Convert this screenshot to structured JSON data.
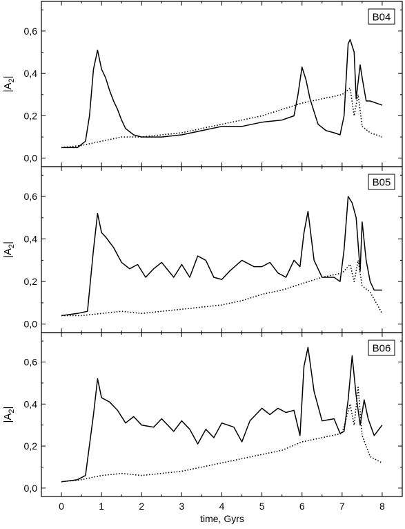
{
  "figure": {
    "xlabel": "time, Gyrs",
    "x_tick_labels": [
      "0",
      "1",
      "2",
      "3",
      "4",
      "5",
      "6",
      "7",
      "8"
    ],
    "y_tick_labels": [
      "0,0",
      "0,2",
      "0,4",
      "0,6"
    ],
    "ylabel_main": "|A",
    "ylabel_sub": "2",
    "ylabel_end": "|"
  },
  "chart_data": [
    {
      "type": "line",
      "label": "B04",
      "xlim": [
        -0.5,
        8.5
      ],
      "ylim": [
        -0.04,
        0.74
      ],
      "grid": false,
      "series": [
        {
          "style": "solid",
          "x": [
            0,
            0.2,
            0.4,
            0.6,
            0.7,
            0.8,
            0.9,
            1.0,
            1.1,
            1.2,
            1.3,
            1.4,
            1.5,
            1.6,
            1.8,
            2.0,
            2.5,
            3.0,
            3.5,
            4.0,
            4.5,
            5.0,
            5.5,
            5.8,
            5.9,
            6.0,
            6.1,
            6.2,
            6.4,
            6.6,
            6.8,
            6.95,
            7.05,
            7.15,
            7.2,
            7.3,
            7.35,
            7.45,
            7.5,
            7.6,
            7.7,
            8.0
          ],
          "y": [
            0.05,
            0.05,
            0.05,
            0.08,
            0.2,
            0.42,
            0.51,
            0.42,
            0.38,
            0.32,
            0.27,
            0.23,
            0.18,
            0.14,
            0.11,
            0.1,
            0.1,
            0.11,
            0.13,
            0.15,
            0.15,
            0.17,
            0.18,
            0.2,
            0.3,
            0.43,
            0.37,
            0.28,
            0.16,
            0.13,
            0.12,
            0.11,
            0.2,
            0.54,
            0.56,
            0.5,
            0.28,
            0.44,
            0.38,
            0.27,
            0.27,
            0.25
          ]
        },
        {
          "style": "dotted",
          "x": [
            0,
            0.5,
            1.0,
            1.5,
            2.0,
            2.5,
            3.0,
            3.5,
            4.0,
            4.5,
            5.0,
            5.5,
            6.0,
            6.5,
            7.0,
            7.2,
            7.3,
            7.4,
            7.5,
            7.7,
            8.0
          ],
          "y": [
            0.05,
            0.06,
            0.08,
            0.1,
            0.1,
            0.11,
            0.12,
            0.14,
            0.16,
            0.18,
            0.2,
            0.23,
            0.26,
            0.28,
            0.3,
            0.33,
            0.2,
            0.3,
            0.15,
            0.12,
            0.1
          ]
        }
      ]
    },
    {
      "type": "line",
      "label": "B05",
      "xlim": [
        -0.5,
        8.5
      ],
      "ylim": [
        -0.04,
        0.74
      ],
      "grid": false,
      "series": [
        {
          "style": "solid",
          "x": [
            0,
            0.4,
            0.65,
            0.8,
            0.9,
            1.0,
            1.1,
            1.3,
            1.5,
            1.7,
            1.9,
            2.1,
            2.3,
            2.5,
            2.8,
            3.0,
            3.2,
            3.4,
            3.6,
            3.8,
            4.0,
            4.2,
            4.5,
            4.8,
            5.0,
            5.2,
            5.4,
            5.6,
            5.8,
            5.95,
            6.05,
            6.15,
            6.3,
            6.5,
            6.8,
            6.95,
            7.05,
            7.15,
            7.25,
            7.35,
            7.45,
            7.5,
            7.6,
            7.7,
            7.8,
            8.0
          ],
          "y": [
            0.04,
            0.05,
            0.06,
            0.35,
            0.52,
            0.43,
            0.41,
            0.36,
            0.29,
            0.26,
            0.28,
            0.22,
            0.26,
            0.29,
            0.22,
            0.28,
            0.22,
            0.32,
            0.3,
            0.22,
            0.21,
            0.25,
            0.3,
            0.27,
            0.27,
            0.29,
            0.24,
            0.22,
            0.3,
            0.27,
            0.43,
            0.53,
            0.3,
            0.22,
            0.22,
            0.2,
            0.35,
            0.6,
            0.57,
            0.5,
            0.25,
            0.48,
            0.3,
            0.2,
            0.16,
            0.16
          ]
        },
        {
          "style": "dotted",
          "x": [
            0,
            0.5,
            1.0,
            1.5,
            2.0,
            2.5,
            3.0,
            3.5,
            4.0,
            4.5,
            5.0,
            5.5,
            6.0,
            6.5,
            7.0,
            7.2,
            7.3,
            7.4,
            7.5,
            7.7,
            8.0
          ],
          "y": [
            0.04,
            0.04,
            0.05,
            0.06,
            0.05,
            0.06,
            0.07,
            0.08,
            0.09,
            0.11,
            0.14,
            0.16,
            0.19,
            0.22,
            0.24,
            0.28,
            0.2,
            0.3,
            0.18,
            0.15,
            0.05
          ]
        }
      ]
    },
    {
      "type": "line",
      "label": "B06",
      "xlim": [
        -0.5,
        8.5
      ],
      "ylim": [
        -0.04,
        0.74
      ],
      "grid": false,
      "series": [
        {
          "style": "solid",
          "x": [
            0,
            0.4,
            0.6,
            0.8,
            0.9,
            1.0,
            1.2,
            1.4,
            1.6,
            1.8,
            2.0,
            2.3,
            2.5,
            2.8,
            3.0,
            3.2,
            3.4,
            3.6,
            3.8,
            4.0,
            4.3,
            4.5,
            4.7,
            5.0,
            5.2,
            5.4,
            5.6,
            5.8,
            5.95,
            6.05,
            6.15,
            6.3,
            6.5,
            6.8,
            6.95,
            7.05,
            7.15,
            7.25,
            7.35,
            7.45,
            7.55,
            7.65,
            7.8,
            8.0
          ],
          "y": [
            0.03,
            0.04,
            0.06,
            0.35,
            0.52,
            0.43,
            0.41,
            0.37,
            0.31,
            0.34,
            0.3,
            0.29,
            0.33,
            0.27,
            0.32,
            0.28,
            0.21,
            0.28,
            0.24,
            0.31,
            0.29,
            0.22,
            0.32,
            0.38,
            0.35,
            0.38,
            0.36,
            0.37,
            0.25,
            0.58,
            0.67,
            0.46,
            0.32,
            0.33,
            0.26,
            0.27,
            0.42,
            0.63,
            0.44,
            0.3,
            0.42,
            0.33,
            0.25,
            0.3
          ]
        },
        {
          "style": "dotted",
          "x": [
            0,
            0.5,
            1.0,
            1.5,
            2.0,
            2.5,
            3.0,
            3.5,
            4.0,
            4.5,
            5.0,
            5.5,
            6.0,
            6.5,
            7.0,
            7.2,
            7.3,
            7.4,
            7.5,
            7.7,
            8.0
          ],
          "y": [
            0.03,
            0.04,
            0.06,
            0.07,
            0.06,
            0.07,
            0.08,
            0.1,
            0.12,
            0.14,
            0.16,
            0.18,
            0.22,
            0.24,
            0.26,
            0.4,
            0.3,
            0.48,
            0.25,
            0.15,
            0.12
          ]
        }
      ]
    }
  ]
}
